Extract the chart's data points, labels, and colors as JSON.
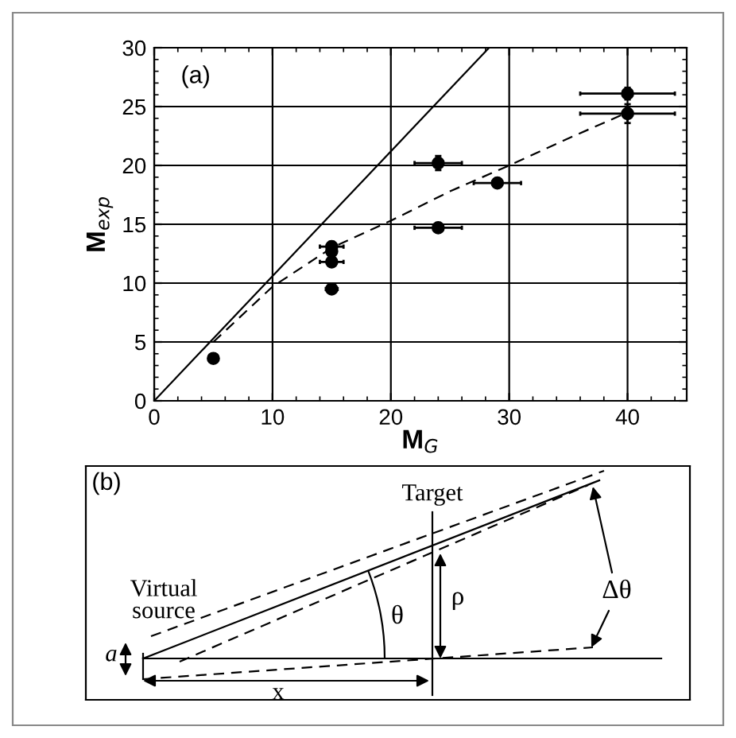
{
  "chart_data": [
    {
      "type": "scatter",
      "xlabel": "M$_{G}$",
      "ylabel": "M$_{exp}$",
      "xlim": [
        0,
        45
      ],
      "ylim": [
        0,
        30
      ],
      "xticks": [
        0,
        10,
        20,
        30,
        40
      ],
      "yticks": [
        0,
        5,
        10,
        15,
        20,
        25,
        30
      ],
      "grid": true,
      "annotations": [
        "(a)"
      ],
      "series": [
        {
          "type": "scatter",
          "color": "#000000",
          "marker": "circle",
          "x": [
            5,
            15,
            15,
            15,
            15,
            24,
            24,
            29,
            40,
            40
          ],
          "values": [
            3.6,
            13.1,
            12.7,
            11.8,
            9.5,
            20.2,
            14.7,
            18.5,
            26.1,
            24.4
          ],
          "xerrors": [
            null,
            1,
            null,
            1,
            0.5,
            2,
            2,
            2,
            4,
            4
          ],
          "errors": [
            null,
            0.4,
            0.4,
            0.3,
            0.3,
            0.6,
            0.3,
            0.3,
            0.5,
            0.8
          ]
        },
        {
          "type": "line",
          "color": "#000000",
          "line_style": "solid",
          "x": [
            0,
            28.3
          ],
          "values": [
            0,
            30
          ]
        },
        {
          "type": "line",
          "color": "#000000",
          "line_style": "dashed",
          "x": [
            5,
            10,
            15,
            20,
            25,
            30,
            35,
            40
          ],
          "values": [
            5,
            9.7,
            13.0,
            15.3,
            17.8,
            20,
            22.3,
            24.5
          ]
        }
      ]
    },
    {
      "type": "other",
      "annotations": [
        "(b)",
        "Target",
        "Virtual source",
        "θ",
        "ρ",
        "Δθ",
        "x",
        "a"
      ]
    }
  ]
}
